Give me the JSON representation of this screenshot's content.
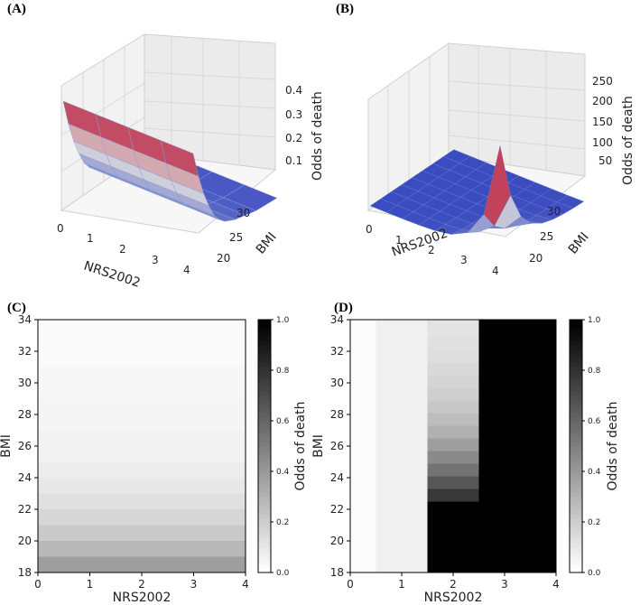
{
  "panels": {
    "a": {
      "label": "(A)"
    },
    "b": {
      "label": "(B)"
    },
    "c": {
      "label": "(C)"
    },
    "d": {
      "label": "(D)"
    }
  },
  "chart_data": [
    {
      "id": "A",
      "type": "surface3d",
      "title": "",
      "xlabel": "NRS2002",
      "ylabel": "BMI",
      "zlabel": "Odds of death",
      "x_ticks": [
        "0",
        "1",
        "2",
        "3",
        "4"
      ],
      "y_ticks": [
        "20",
        "25",
        "30"
      ],
      "z_ticks": [
        "0.1",
        "0.2",
        "0.3",
        "0.4"
      ],
      "xlim": [
        0,
        4
      ],
      "ylim": [
        18,
        34
      ],
      "zlim": [
        0,
        0.45
      ],
      "colormap": "coolwarm",
      "surface_rows_bmi": [
        18,
        19,
        20,
        21,
        22,
        23,
        24,
        26,
        28,
        30,
        34
      ],
      "surface_odds_by_bmi": [
        0.4,
        0.3,
        0.22,
        0.16,
        0.11,
        0.08,
        0.06,
        0.04,
        0.03,
        0.02,
        0.015
      ]
    },
    {
      "id": "B",
      "type": "surface3d",
      "title": "",
      "xlabel": "NRS2002",
      "ylabel": "BMI",
      "zlabel": "Odds of death",
      "x_ticks": [
        "0",
        "1",
        "2",
        "3",
        "4"
      ],
      "y_ticks": [
        "20",
        "25",
        "30"
      ],
      "z_ticks": [
        "50",
        "100",
        "150",
        "200",
        "250"
      ],
      "xlim": [
        0,
        4
      ],
      "ylim": [
        18,
        34
      ],
      "zlim": [
        0,
        260
      ],
      "colormap": "coolwarm",
      "peak": {
        "nrs2002": 4,
        "bmi": 18,
        "odds": 240
      }
    },
    {
      "id": "C",
      "type": "heatmap",
      "title": "",
      "xlabel": "NRS2002",
      "ylabel": "BMI",
      "x_ticks": [
        "0",
        "1",
        "2",
        "3",
        "4"
      ],
      "y_ticks": [
        "18",
        "20",
        "22",
        "24",
        "26",
        "28",
        "30",
        "32",
        "34"
      ],
      "xlim": [
        0,
        4
      ],
      "ylim": [
        18,
        34
      ],
      "colorbar": {
        "label": "Odds of death",
        "ticks": [
          "0.0",
          "0.2",
          "0.4",
          "0.6",
          "0.8",
          "1.0"
        ],
        "range": [
          0,
          1
        ],
        "colormap": "Greys"
      },
      "rows": [
        {
          "bmi": [
            18,
            19
          ],
          "value": 0.38
        },
        {
          "bmi": [
            19,
            20
          ],
          "value": 0.28
        },
        {
          "bmi": [
            20,
            21
          ],
          "value": 0.21
        },
        {
          "bmi": [
            21,
            22
          ],
          "value": 0.16
        },
        {
          "bmi": [
            22,
            23
          ],
          "value": 0.12
        },
        {
          "bmi": [
            23,
            24
          ],
          "value": 0.09
        },
        {
          "bmi": [
            24,
            25
          ],
          "value": 0.07
        },
        {
          "bmi": [
            25,
            27
          ],
          "value": 0.05
        },
        {
          "bmi": [
            27,
            29
          ],
          "value": 0.04
        },
        {
          "bmi": [
            29,
            31
          ],
          "value": 0.03
        },
        {
          "bmi": [
            31,
            34
          ],
          "value": 0.02
        }
      ]
    },
    {
      "id": "D",
      "type": "heatmap",
      "title": "",
      "xlabel": "NRS2002",
      "ylabel": "BMI",
      "x_ticks": [
        "0",
        "1",
        "2",
        "3",
        "4"
      ],
      "y_ticks": [
        "18",
        "20",
        "22",
        "24",
        "26",
        "28",
        "30",
        "32",
        "34"
      ],
      "xlim": [
        0,
        4
      ],
      "ylim": [
        18,
        34
      ],
      "colorbar": {
        "label": "Odds of death",
        "ticks": [
          "0.0",
          "0.2",
          "0.4",
          "0.6",
          "0.8",
          "1.0"
        ],
        "range": [
          0,
          1
        ],
        "colormap": "Greys"
      },
      "columns": [
        {
          "nrs": [
            0,
            0.5
          ],
          "rows": [
            {
              "bmi": [
                18,
                34
              ],
              "value": 0.01
            }
          ]
        },
        {
          "nrs": [
            0.5,
            1.5
          ],
          "rows": [
            {
              "bmi": [
                18,
                34
              ],
              "value": 0.06
            }
          ]
        },
        {
          "nrs": [
            1.5,
            2.5
          ],
          "rows": [
            {
              "bmi": [
                18,
                22.5
              ],
              "value": 1.0
            },
            {
              "bmi": [
                22.5,
                23.3
              ],
              "value": 0.78
            },
            {
              "bmi": [
                23.3,
                24.1
              ],
              "value": 0.66
            },
            {
              "bmi": [
                24.1,
                24.9
              ],
              "value": 0.55
            },
            {
              "bmi": [
                24.9,
                25.7
              ],
              "value": 0.46
            },
            {
              "bmi": [
                25.7,
                26.5
              ],
              "value": 0.38
            },
            {
              "bmi": [
                26.5,
                27.3
              ],
              "value": 0.31
            },
            {
              "bmi": [
                27.3,
                28.1
              ],
              "value": 0.26
            },
            {
              "bmi": [
                28.1,
                28.9
              ],
              "value": 0.22
            },
            {
              "bmi": [
                28.9,
                29.7
              ],
              "value": 0.19
            },
            {
              "bmi": [
                29.7,
                30.5
              ],
              "value": 0.17
            },
            {
              "bmi": [
                30.5,
                31.3
              ],
              "value": 0.15
            },
            {
              "bmi": [
                31.3,
                32.1
              ],
              "value": 0.13
            },
            {
              "bmi": [
                32.1,
                32.9
              ],
              "value": 0.12
            },
            {
              "bmi": [
                32.9,
                34
              ],
              "value": 0.11
            }
          ]
        },
        {
          "nrs": [
            2.5,
            4
          ],
          "rows": [
            {
              "bmi": [
                18,
                34
              ],
              "value": 1.0
            }
          ]
        }
      ]
    }
  ]
}
